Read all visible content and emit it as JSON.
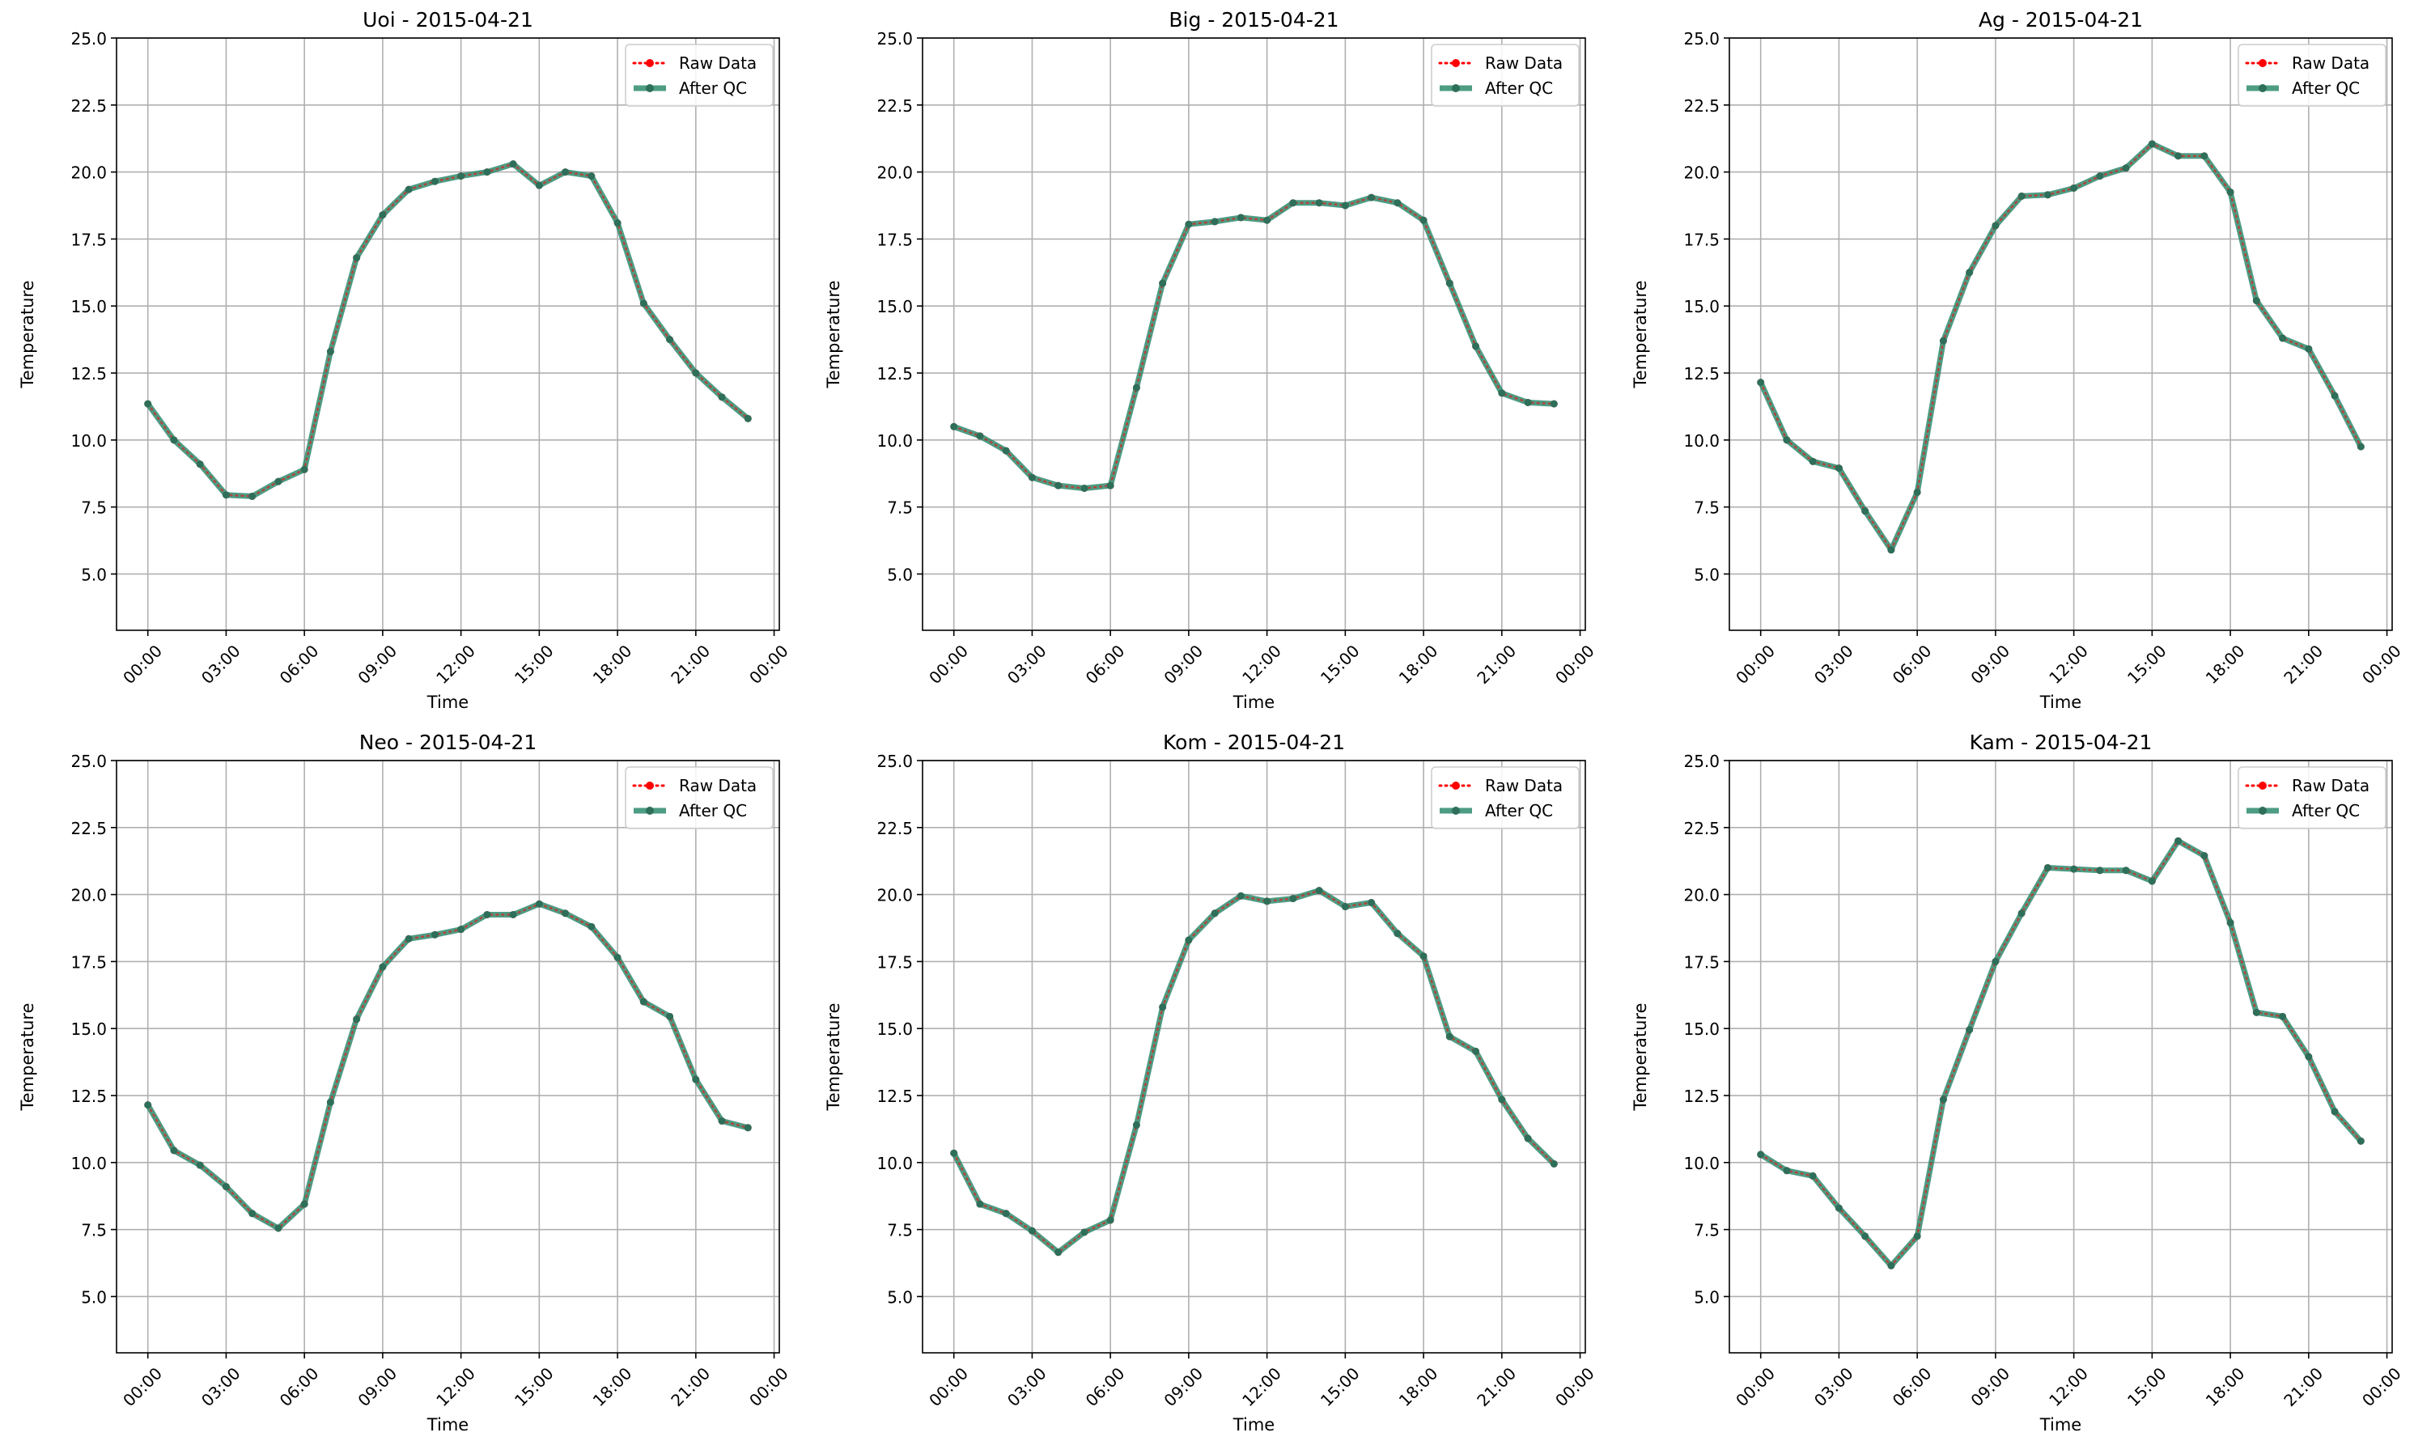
{
  "colors": {
    "raw": "#ff0000",
    "qc": "#2e8b6e",
    "qc_marker": "#2e6f5a",
    "grid": "#b0b0b0",
    "axis": "#000000"
  },
  "chart_data": [
    {
      "type": "line",
      "title": "Uoi - 2015-04-21",
      "xlabel": "Time",
      "ylabel": "Temperature",
      "ylim": [
        2.9,
        25.0
      ],
      "yticks": [
        5.0,
        7.5,
        10.0,
        12.5,
        15.0,
        17.5,
        20.0,
        22.5,
        25.0
      ],
      "ytick_labels": [
        "5.0",
        "7.5",
        "10.0",
        "12.5",
        "15.0",
        "17.5",
        "20.0",
        "22.5",
        "25.0"
      ],
      "xlim": [
        -1.2,
        24.2
      ],
      "xticks": [
        0,
        3,
        6,
        9,
        12,
        15,
        18,
        21,
        24
      ],
      "xtick_labels": [
        "00:00",
        "03:00",
        "06:00",
        "09:00",
        "12:00",
        "15:00",
        "18:00",
        "21:00",
        "00:00"
      ],
      "grid": true,
      "legend_position": "top-right",
      "x": [
        0,
        1,
        2,
        3,
        4,
        5,
        6,
        7,
        8,
        9,
        10,
        11,
        12,
        13,
        14,
        15,
        16,
        17,
        18,
        19,
        20,
        21,
        22,
        23
      ],
      "series": [
        {
          "name": "Raw Data",
          "values": [
            11.35,
            10.0,
            9.1,
            7.95,
            7.9,
            8.45,
            8.9,
            13.3,
            16.8,
            18.4,
            19.35,
            19.65,
            19.85,
            20.0,
            20.3,
            19.5,
            20.0,
            19.85,
            18.1,
            15.1,
            13.75,
            12.5,
            11.6,
            10.8
          ]
        },
        {
          "name": "After QC",
          "values": [
            11.35,
            10.0,
            9.1,
            7.95,
            7.9,
            8.45,
            8.9,
            13.3,
            16.8,
            18.4,
            19.35,
            19.65,
            19.85,
            20.0,
            20.3,
            19.5,
            20.0,
            19.85,
            18.1,
            15.1,
            13.75,
            12.5,
            11.6,
            10.8
          ]
        }
      ]
    },
    {
      "type": "line",
      "title": "Big - 2015-04-21",
      "xlabel": "Time",
      "ylabel": "Temperature",
      "ylim": [
        2.9,
        25.0
      ],
      "yticks": [
        5.0,
        7.5,
        10.0,
        12.5,
        15.0,
        17.5,
        20.0,
        22.5,
        25.0
      ],
      "ytick_labels": [
        "5.0",
        "7.5",
        "10.0",
        "12.5",
        "15.0",
        "17.5",
        "20.0",
        "22.5",
        "25.0"
      ],
      "xlim": [
        -1.2,
        24.2
      ],
      "xticks": [
        0,
        3,
        6,
        9,
        12,
        15,
        18,
        21,
        24
      ],
      "xtick_labels": [
        "00:00",
        "03:00",
        "06:00",
        "09:00",
        "12:00",
        "15:00",
        "18:00",
        "21:00",
        "00:00"
      ],
      "grid": true,
      "legend_position": "top-right",
      "x": [
        0,
        1,
        2,
        3,
        4,
        5,
        6,
        7,
        8,
        9,
        10,
        11,
        12,
        13,
        14,
        15,
        16,
        17,
        18,
        19,
        20,
        21,
        22,
        23
      ],
      "series": [
        {
          "name": "Raw Data",
          "values": [
            10.5,
            10.15,
            9.6,
            8.6,
            8.3,
            8.2,
            8.3,
            11.95,
            15.85,
            18.05,
            18.15,
            18.3,
            18.2,
            18.85,
            18.85,
            18.75,
            19.05,
            18.85,
            18.2,
            15.85,
            13.5,
            11.75,
            11.4,
            11.35
          ]
        },
        {
          "name": "After QC",
          "values": [
            10.5,
            10.15,
            9.6,
            8.6,
            8.3,
            8.2,
            8.3,
            11.95,
            15.85,
            18.05,
            18.15,
            18.3,
            18.2,
            18.85,
            18.85,
            18.75,
            19.05,
            18.85,
            18.2,
            15.85,
            13.5,
            11.75,
            11.4,
            11.35
          ]
        }
      ]
    },
    {
      "type": "line",
      "title": "Ag - 2015-04-21",
      "xlabel": "Time",
      "ylabel": "Temperature",
      "ylim": [
        2.9,
        25.0
      ],
      "yticks": [
        5.0,
        7.5,
        10.0,
        12.5,
        15.0,
        17.5,
        20.0,
        22.5,
        25.0
      ],
      "ytick_labels": [
        "5.0",
        "7.5",
        "10.0",
        "12.5",
        "15.0",
        "17.5",
        "20.0",
        "22.5",
        "25.0"
      ],
      "xlim": [
        -1.2,
        24.2
      ],
      "xticks": [
        0,
        3,
        6,
        9,
        12,
        15,
        18,
        21,
        24
      ],
      "xtick_labels": [
        "00:00",
        "03:00",
        "06:00",
        "09:00",
        "12:00",
        "15:00",
        "18:00",
        "21:00",
        "00:00"
      ],
      "grid": true,
      "legend_position": "top-right",
      "x": [
        0,
        1,
        2,
        3,
        4,
        5,
        6,
        7,
        8,
        9,
        10,
        11,
        12,
        13,
        14,
        15,
        16,
        17,
        18,
        19,
        20,
        21,
        22,
        23
      ],
      "series": [
        {
          "name": "Raw Data",
          "values": [
            12.15,
            10.0,
            9.2,
            8.95,
            7.35,
            5.9,
            8.05,
            13.7,
            16.25,
            18.0,
            19.1,
            19.15,
            19.4,
            19.85,
            20.15,
            21.05,
            20.6,
            20.6,
            19.25,
            15.2,
            13.8,
            13.4,
            11.65,
            9.75
          ]
        },
        {
          "name": "After QC",
          "values": [
            12.15,
            10.0,
            9.2,
            8.95,
            7.35,
            5.9,
            8.05,
            13.7,
            16.25,
            18.0,
            19.1,
            19.15,
            19.4,
            19.85,
            20.15,
            21.05,
            20.6,
            20.6,
            19.25,
            15.2,
            13.8,
            13.4,
            11.65,
            9.75
          ]
        }
      ]
    },
    {
      "type": "line",
      "title": "Neo - 2015-04-21",
      "xlabel": "Time",
      "ylabel": "Temperature",
      "ylim": [
        2.9,
        25.0
      ],
      "yticks": [
        5.0,
        7.5,
        10.0,
        12.5,
        15.0,
        17.5,
        20.0,
        22.5,
        25.0
      ],
      "ytick_labels": [
        "5.0",
        "7.5",
        "10.0",
        "12.5",
        "15.0",
        "17.5",
        "20.0",
        "22.5",
        "25.0"
      ],
      "xlim": [
        -1.2,
        24.2
      ],
      "xticks": [
        0,
        3,
        6,
        9,
        12,
        15,
        18,
        21,
        24
      ],
      "xtick_labels": [
        "00:00",
        "03:00",
        "06:00",
        "09:00",
        "12:00",
        "15:00",
        "18:00",
        "21:00",
        "00:00"
      ],
      "grid": true,
      "legend_position": "top-right",
      "x": [
        0,
        1,
        2,
        3,
        4,
        5,
        6,
        7,
        8,
        9,
        10,
        11,
        12,
        13,
        14,
        15,
        16,
        17,
        18,
        19,
        20,
        21,
        22,
        23
      ],
      "series": [
        {
          "name": "Raw Data",
          "values": [
            12.15,
            10.45,
            9.9,
            9.1,
            8.1,
            7.55,
            8.45,
            12.25,
            15.35,
            17.3,
            18.35,
            18.5,
            18.7,
            19.25,
            19.25,
            19.65,
            19.3,
            18.8,
            17.65,
            16.0,
            15.45,
            13.1,
            11.55,
            11.3
          ]
        },
        {
          "name": "After QC",
          "values": [
            12.15,
            10.45,
            9.9,
            9.1,
            8.1,
            7.55,
            8.45,
            12.25,
            15.35,
            17.3,
            18.35,
            18.5,
            18.7,
            19.25,
            19.25,
            19.65,
            19.3,
            18.8,
            17.65,
            16.0,
            15.45,
            13.1,
            11.55,
            11.3
          ]
        }
      ]
    },
    {
      "type": "line",
      "title": "Kom - 2015-04-21",
      "xlabel": "Time",
      "ylabel": "Temperature",
      "ylim": [
        2.9,
        25.0
      ],
      "yticks": [
        5.0,
        7.5,
        10.0,
        12.5,
        15.0,
        17.5,
        20.0,
        22.5,
        25.0
      ],
      "ytick_labels": [
        "5.0",
        "7.5",
        "10.0",
        "12.5",
        "15.0",
        "17.5",
        "20.0",
        "22.5",
        "25.0"
      ],
      "xlim": [
        -1.2,
        24.2
      ],
      "xticks": [
        0,
        3,
        6,
        9,
        12,
        15,
        18,
        21,
        24
      ],
      "xtick_labels": [
        "00:00",
        "03:00",
        "06:00",
        "09:00",
        "12:00",
        "15:00",
        "18:00",
        "21:00",
        "00:00"
      ],
      "grid": true,
      "legend_position": "top-right",
      "x": [
        0,
        1,
        2,
        3,
        4,
        5,
        6,
        7,
        8,
        9,
        10,
        11,
        12,
        13,
        14,
        15,
        16,
        17,
        18,
        19,
        20,
        21,
        22,
        23
      ],
      "series": [
        {
          "name": "Raw Data",
          "values": [
            10.35,
            8.45,
            8.1,
            7.45,
            6.65,
            7.4,
            7.85,
            11.4,
            15.8,
            18.3,
            19.3,
            19.95,
            19.75,
            19.85,
            20.15,
            19.55,
            19.7,
            18.55,
            17.7,
            14.7,
            14.15,
            12.35,
            10.9,
            9.95
          ]
        },
        {
          "name": "After QC",
          "values": [
            10.35,
            8.45,
            8.1,
            7.45,
            6.65,
            7.4,
            7.85,
            11.4,
            15.8,
            18.3,
            19.3,
            19.95,
            19.75,
            19.85,
            20.15,
            19.55,
            19.7,
            18.55,
            17.7,
            14.7,
            14.15,
            12.35,
            10.9,
            9.95
          ]
        }
      ]
    },
    {
      "type": "line",
      "title": "Kam - 2015-04-21",
      "xlabel": "Time",
      "ylabel": "Temperature",
      "ylim": [
        2.9,
        25.0
      ],
      "yticks": [
        5.0,
        7.5,
        10.0,
        12.5,
        15.0,
        17.5,
        20.0,
        22.5,
        25.0
      ],
      "ytick_labels": [
        "5.0",
        "7.5",
        "10.0",
        "12.5",
        "15.0",
        "17.5",
        "20.0",
        "22.5",
        "25.0"
      ],
      "xlim": [
        -1.2,
        24.2
      ],
      "xticks": [
        0,
        3,
        6,
        9,
        12,
        15,
        18,
        21,
        24
      ],
      "xtick_labels": [
        "00:00",
        "03:00",
        "06:00",
        "09:00",
        "12:00",
        "15:00",
        "18:00",
        "21:00",
        "00:00"
      ],
      "grid": true,
      "legend_position": "top-right",
      "x": [
        0,
        1,
        2,
        3,
        4,
        5,
        6,
        7,
        8,
        9,
        10,
        11,
        12,
        13,
        14,
        15,
        16,
        17,
        18,
        19,
        20,
        21,
        22,
        23
      ],
      "series": [
        {
          "name": "Raw Data",
          "values": [
            10.3,
            9.7,
            9.5,
            8.3,
            7.25,
            6.15,
            7.25,
            12.35,
            14.95,
            17.5,
            19.3,
            21.0,
            20.95,
            20.9,
            20.9,
            20.5,
            22.0,
            21.45,
            18.95,
            15.6,
            15.45,
            13.95,
            11.9,
            10.8
          ]
        },
        {
          "name": "After QC",
          "values": [
            10.3,
            9.7,
            9.5,
            8.3,
            7.25,
            6.15,
            7.25,
            12.35,
            14.95,
            17.5,
            19.3,
            21.0,
            20.95,
            20.9,
            20.9,
            20.5,
            22.0,
            21.45,
            18.95,
            15.6,
            15.45,
            13.95,
            11.9,
            10.8
          ]
        }
      ]
    }
  ]
}
